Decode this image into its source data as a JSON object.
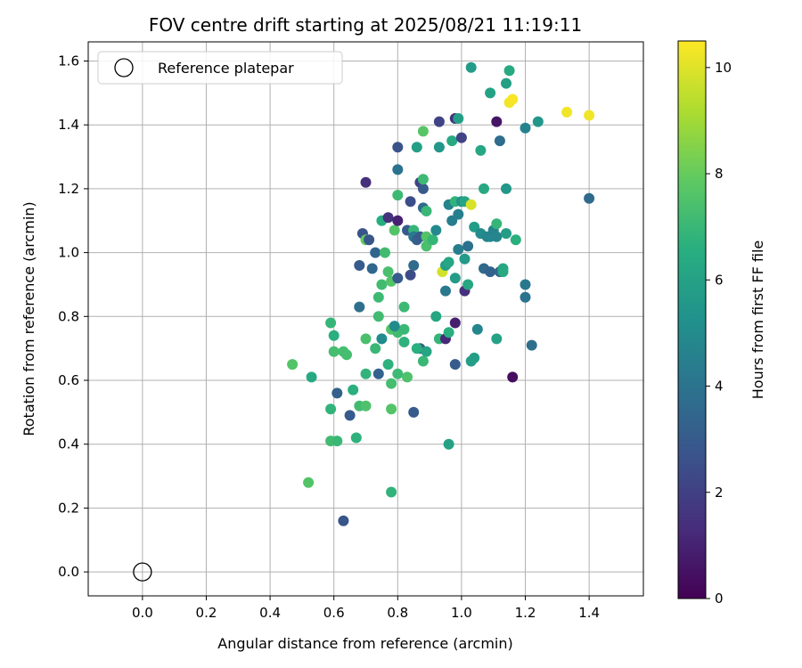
{
  "chart_data": {
    "type": "scatter",
    "title": "FOV centre drift starting at 2025/08/21 11:19:11",
    "xlabel": "Angular distance from reference (arcmin)",
    "ylabel": "Rotation from reference (arcmin)",
    "xlim": [
      -0.17,
      1.57
    ],
    "ylim": [
      -0.075,
      1.66
    ],
    "xticks": [
      0.0,
      0.2,
      0.4,
      0.6,
      0.8,
      1.0,
      1.2,
      1.4
    ],
    "yticks": [
      0.0,
      0.2,
      0.4,
      0.6,
      0.8,
      1.0,
      1.2,
      1.4,
      1.6
    ],
    "xtick_labels": [
      "0.0",
      "0.2",
      "0.4",
      "0.6",
      "0.8",
      "1.0",
      "1.2",
      "1.4"
    ],
    "ytick_labels": [
      "0.0",
      "0.2",
      "0.4",
      "0.6",
      "0.8",
      "1.0",
      "1.2",
      "1.4",
      "1.6"
    ],
    "grid": true,
    "legend": {
      "location": "top-left",
      "entries": [
        {
          "label": "Reference platepar",
          "marker": "open-circle"
        }
      ]
    },
    "reference_point": {
      "x": 0.0,
      "y": 0.0,
      "label": "Reference platepar"
    },
    "colorbar": {
      "label": "Hours from first FF file",
      "colormap": "viridis",
      "range": [
        0,
        10.5
      ],
      "ticks": [
        0,
        2,
        4,
        6,
        8,
        10
      ],
      "tick_labels": [
        "0",
        "2",
        "4",
        "6",
        "8",
        "10"
      ]
    },
    "point_fields": [
      "x",
      "y",
      "hours"
    ],
    "points": [
      [
        0.63,
        0.16,
        2.8
      ],
      [
        0.52,
        0.28,
        7.6
      ],
      [
        0.78,
        0.25,
        6.8
      ],
      [
        0.59,
        0.41,
        7.2
      ],
      [
        0.61,
        0.41,
        7.0
      ],
      [
        0.67,
        0.42,
        6.7
      ],
      [
        0.96,
        0.4,
        6.0
      ],
      [
        0.65,
        0.49,
        3.0
      ],
      [
        0.59,
        0.51,
        6.8
      ],
      [
        0.68,
        0.52,
        7.2
      ],
      [
        0.7,
        0.52,
        7.5
      ],
      [
        0.78,
        0.51,
        7.6
      ],
      [
        0.85,
        0.5,
        3.0
      ],
      [
        0.61,
        0.56,
        3.2
      ],
      [
        0.66,
        0.57,
        6.6
      ],
      [
        0.78,
        0.59,
        7.3
      ],
      [
        0.47,
        0.65,
        7.6
      ],
      [
        0.53,
        0.61,
        6.4
      ],
      [
        0.6,
        0.69,
        7.3
      ],
      [
        0.63,
        0.69,
        7.3
      ],
      [
        0.64,
        0.68,
        7.3
      ],
      [
        0.7,
        0.62,
        6.8
      ],
      [
        0.74,
        0.62,
        3.3
      ],
      [
        0.77,
        0.65,
        6.7
      ],
      [
        0.8,
        0.62,
        7.1
      ],
      [
        0.83,
        0.61,
        7.5
      ],
      [
        0.87,
        0.7,
        3.1
      ],
      [
        0.89,
        0.69,
        6.1
      ],
      [
        0.88,
        0.66,
        7.0
      ],
      [
        0.59,
        0.78,
        6.9
      ],
      [
        0.6,
        0.74,
        6.6
      ],
      [
        0.7,
        0.73,
        7.4
      ],
      [
        0.73,
        0.7,
        7.0
      ],
      [
        0.75,
        0.73,
        5.0
      ],
      [
        0.78,
        0.76,
        7.6
      ],
      [
        0.8,
        0.75,
        7.2
      ],
      [
        0.82,
        0.72,
        6.7
      ],
      [
        0.82,
        0.76,
        7.0
      ],
      [
        0.74,
        0.8,
        7.2
      ],
      [
        0.79,
        0.77,
        5.0
      ],
      [
        0.86,
        0.7,
        6.6
      ],
      [
        0.92,
        0.8,
        6.2
      ],
      [
        0.93,
        0.73,
        6.9
      ],
      [
        0.95,
        0.73,
        1.2
      ],
      [
        0.96,
        0.75,
        6.6
      ],
      [
        0.98,
        0.78,
        0.9
      ],
      [
        0.98,
        0.65,
        3.0
      ],
      [
        1.03,
        0.66,
        5.8
      ],
      [
        1.04,
        0.67,
        5.9
      ],
      [
        1.05,
        0.76,
        4.8
      ],
      [
        1.11,
        0.73,
        6.0
      ],
      [
        1.16,
        0.61,
        0.4
      ],
      [
        1.22,
        0.71,
        3.8
      ],
      [
        0.68,
        0.83,
        3.8
      ],
      [
        0.74,
        0.86,
        7.1
      ],
      [
        0.75,
        0.9,
        7.2
      ],
      [
        0.77,
        0.94,
        7.4
      ],
      [
        0.78,
        0.91,
        7.6
      ],
      [
        0.8,
        0.92,
        3.0
      ],
      [
        0.82,
        0.83,
        7.1
      ],
      [
        0.84,
        0.93,
        2.4
      ],
      [
        0.85,
        0.96,
        3.6
      ],
      [
        0.68,
        0.96,
        3.0
      ],
      [
        0.72,
        0.95,
        3.5
      ],
      [
        0.73,
        1.0,
        3.4
      ],
      [
        0.69,
        1.06,
        2.7
      ],
      [
        0.7,
        1.04,
        7.9
      ],
      [
        0.71,
        1.04,
        2.8
      ],
      [
        0.76,
        1.0,
        7.2
      ],
      [
        0.75,
        1.1,
        6.5
      ],
      [
        0.77,
        1.11,
        1.5
      ],
      [
        0.79,
        1.07,
        7.6
      ],
      [
        0.8,
        1.1,
        1.0
      ],
      [
        0.83,
        1.07,
        3.0
      ],
      [
        0.85,
        1.07,
        6.9
      ],
      [
        0.85,
        1.05,
        4.2
      ],
      [
        0.86,
        1.04,
        3.2
      ],
      [
        0.87,
        1.05,
        3.0
      ],
      [
        0.88,
        1.14,
        3.6
      ],
      [
        0.89,
        1.13,
        7.0
      ],
      [
        0.89,
        1.05,
        7.6
      ],
      [
        0.89,
        1.02,
        7.4
      ],
      [
        0.91,
        1.04,
        6.9
      ],
      [
        0.92,
        1.07,
        4.9
      ],
      [
        0.94,
        0.94,
        9.8
      ],
      [
        0.95,
        0.88,
        4.2
      ],
      [
        0.95,
        0.96,
        5.9
      ],
      [
        0.96,
        0.97,
        6.2
      ],
      [
        0.96,
        1.15,
        4.6
      ],
      [
        0.97,
        1.1,
        4.4
      ],
      [
        0.98,
        1.16,
        6.8
      ],
      [
        0.98,
        0.92,
        5.7
      ],
      [
        0.99,
        1.01,
        4.4
      ],
      [
        0.99,
        1.12,
        4.5
      ],
      [
        1.0,
        1.16,
        5.3
      ],
      [
        1.01,
        0.98,
        5.7
      ],
      [
        1.01,
        0.88,
        1.4
      ],
      [
        1.02,
        0.9,
        6.2
      ],
      [
        1.01,
        1.16,
        6.1
      ],
      [
        1.02,
        1.02,
        3.9
      ],
      [
        1.03,
        1.15,
        9.9
      ],
      [
        1.04,
        1.08,
        5.8
      ],
      [
        1.06,
        1.06,
        5.0
      ],
      [
        1.07,
        0.95,
        3.6
      ],
      [
        1.08,
        1.05,
        4.8
      ],
      [
        1.09,
        1.05,
        4.8
      ],
      [
        1.09,
        0.94,
        3.3
      ],
      [
        1.1,
        1.07,
        4.6
      ],
      [
        1.11,
        1.09,
        6.9
      ],
      [
        1.11,
        1.05,
        4.8
      ],
      [
        1.12,
        0.94,
        3.4
      ],
      [
        1.13,
        0.94,
        6.4
      ],
      [
        1.13,
        0.95,
        6.3
      ],
      [
        1.14,
        1.06,
        5.8
      ],
      [
        1.17,
        1.04,
        6.6
      ],
      [
        1.2,
        0.9,
        4.2
      ],
      [
        1.2,
        0.86,
        4.0
      ],
      [
        1.4,
        1.17,
        3.6
      ],
      [
        0.7,
        1.22,
        1.4
      ],
      [
        0.8,
        1.18,
        7.1
      ],
      [
        0.8,
        1.26,
        4.0
      ],
      [
        0.84,
        1.16,
        2.5
      ],
      [
        0.87,
        1.22,
        2.1
      ],
      [
        0.88,
        1.2,
        2.9
      ],
      [
        0.88,
        1.23,
        7.1
      ],
      [
        1.07,
        1.2,
        6.3
      ],
      [
        1.14,
        1.2,
        5.5
      ],
      [
        0.8,
        1.33,
        2.7
      ],
      [
        0.86,
        1.33,
        5.9
      ],
      [
        0.88,
        1.38,
        7.7
      ],
      [
        0.93,
        1.33,
        5.5
      ],
      [
        0.93,
        1.41,
        2.1
      ],
      [
        0.97,
        1.35,
        6.4
      ],
      [
        0.98,
        1.42,
        1.5
      ],
      [
        0.99,
        1.42,
        5.9
      ],
      [
        1.0,
        1.36,
        2.1
      ],
      [
        1.06,
        1.32,
        6.2
      ],
      [
        1.09,
        1.5,
        6.0
      ],
      [
        1.11,
        1.41,
        0.6
      ],
      [
        1.12,
        1.35,
        3.7
      ],
      [
        1.14,
        1.53,
        5.9
      ],
      [
        1.15,
        1.47,
        10.3
      ],
      [
        1.16,
        1.48,
        10.4
      ],
      [
        1.2,
        1.39,
        4.6
      ],
      [
        1.24,
        1.41,
        5.5
      ],
      [
        1.15,
        1.57,
        6.4
      ],
      [
        1.03,
        1.58,
        5.7
      ],
      [
        1.33,
        1.44,
        10.3
      ],
      [
        1.4,
        1.43,
        10.3
      ]
    ]
  }
}
